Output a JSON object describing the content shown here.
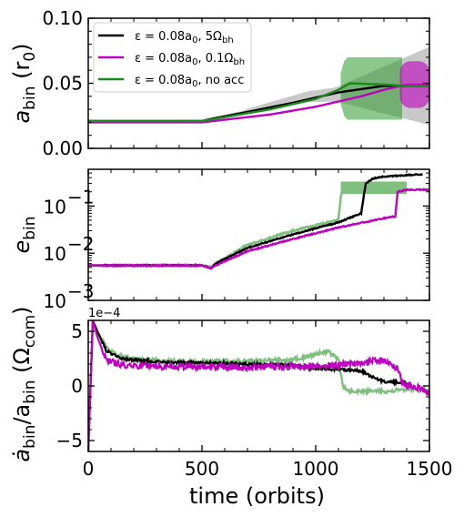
{
  "chart_data": [
    {
      "type": "line",
      "panel": "top",
      "ylabel_main": "a",
      "ylabel_sub": "bin",
      "ylabel_unit": "(r",
      "ylabel_unit_sub": "0",
      "ylabel_close": ")",
      "xlim": [
        0,
        1500
      ],
      "ylim": [
        0.0,
        0.1
      ],
      "yticks": [
        0.0,
        0.05,
        0.1
      ],
      "ytick_labels": [
        "0.00",
        "0.05",
        "0.10"
      ],
      "legend_placement": "upper-left",
      "series": [
        {
          "name": "ε = 0.08a₀, 5Ω_bh",
          "legend_main": "ε = 0.08a",
          "legend_sub1": "0",
          "legend_tail": ", 5Ω",
          "legend_sub2": "bh",
          "color": "#000000",
          "x": [
            0,
            500,
            550,
            700,
            900,
            1100,
            1300,
            1400,
            1500
          ],
          "y": [
            0.021,
            0.021,
            0.023,
            0.028,
            0.035,
            0.043,
            0.048,
            0.048,
            0.048
          ]
        },
        {
          "name": "ε = 0.08a₀, 0.1Ω_bh",
          "legend_main": "ε = 0.08a",
          "legend_sub1": "0",
          "legend_tail": ", 0.1Ω",
          "legend_sub2": "bh",
          "color": "#c000c0",
          "x": [
            0,
            500,
            600,
            800,
            1000,
            1200,
            1300,
            1400,
            1500
          ],
          "y": [
            0.02,
            0.02,
            0.022,
            0.026,
            0.032,
            0.04,
            0.045,
            0.049,
            0.049
          ]
        },
        {
          "name": "ε = 0.08a₀, no acc",
          "legend_main": "ε = 0.08a",
          "legend_sub1": "0",
          "legend_tail": ", no acc",
          "legend_sub2": "",
          "color": "#1a8a1a",
          "x": [
            0,
            500,
            600,
            800,
            1000,
            1100,
            1150,
            1300,
            1400,
            1500
          ],
          "y": [
            0.021,
            0.021,
            0.024,
            0.03,
            0.038,
            0.045,
            0.05,
            0.049,
            0.048,
            0.048
          ]
        }
      ]
    },
    {
      "type": "line",
      "panel": "middle",
      "ylabel_main": "e",
      "ylabel_sub": "bin",
      "yscale": "log",
      "xlim": [
        0,
        1500
      ],
      "ylim": [
        0.001,
        0.6
      ],
      "yticks_exp": [
        -3,
        -2,
        -1
      ],
      "ytick_base": "10",
      "series": [
        {
          "name": "no acc",
          "color": "#7fc07f",
          "x": [
            0,
            500,
            540,
            560,
            700,
            900,
            1100,
            1110,
            1120,
            1400
          ],
          "y": [
            0.0055,
            0.0055,
            0.005,
            0.006,
            0.015,
            0.03,
            0.05,
            0.15,
            0.27,
            0.25
          ]
        },
        {
          "name": "5Ω_bh",
          "color": "#000000",
          "x": [
            0,
            500,
            540,
            560,
            700,
            900,
            1100,
            1200,
            1210,
            1220,
            1250,
            1300,
            1400,
            1470
          ],
          "y": [
            0.0055,
            0.0055,
            0.0048,
            0.006,
            0.013,
            0.025,
            0.045,
            0.07,
            0.15,
            0.3,
            0.38,
            0.42,
            0.45,
            0.47
          ]
        },
        {
          "name": "0.1Ω_bh",
          "color": "#c000c0",
          "x": [
            0,
            500,
            540,
            560,
            700,
            900,
            1100,
            1300,
            1350,
            1360,
            1400,
            1500
          ],
          "y": [
            0.0055,
            0.0055,
            0.0048,
            0.0055,
            0.011,
            0.02,
            0.035,
            0.055,
            0.06,
            0.2,
            0.22,
            0.22
          ]
        }
      ]
    },
    {
      "type": "line",
      "panel": "bottom",
      "ylabel_main": "ȧ",
      "ylabel_div": "/a",
      "ylabel_sub": "bin",
      "ylabel_unit": "(Ω",
      "ylabel_unit_sub": "com",
      "ylabel_close": ")",
      "xlabel": "time (orbits)",
      "offset_text": "1e−4",
      "xlim": [
        0,
        1500
      ],
      "ylim": [
        -6,
        6
      ],
      "yticks": [
        -5,
        0,
        5
      ],
      "ytick_labels": [
        "−5",
        "0",
        "5"
      ],
      "xticks": [
        0,
        500,
        1000,
        1500
      ],
      "xtick_labels": [
        "0",
        "500",
        "1000",
        "1500"
      ],
      "series": [
        {
          "name": "no acc",
          "color": "#7fc07f",
          "x": [
            0,
            20,
            40,
            80,
            150,
            300,
            500,
            700,
            900,
            1000,
            1050,
            1100,
            1120,
            1140,
            1300,
            1400,
            1500
          ],
          "y": [
            -6,
            6,
            5,
            3.5,
            2.6,
            2.3,
            2.2,
            2.3,
            2.4,
            2.9,
            3.2,
            2.5,
            0.0,
            -0.5,
            -0.5,
            -0.3,
            -0.4
          ]
        },
        {
          "name": "5Ω_bh",
          "color": "#000000",
          "x": [
            0,
            20,
            40,
            80,
            150,
            300,
            500,
            700,
            900,
            1000,
            1100,
            1200,
            1250,
            1300,
            1400
          ],
          "y": [
            -6,
            6,
            5,
            3.2,
            2.5,
            2.2,
            2.1,
            2.0,
            1.9,
            1.6,
            1.5,
            1.4,
            0.8,
            0.4,
            0.3
          ]
        },
        {
          "name": "0.1Ω_bh",
          "color": "#c000c0",
          "x": [
            0,
            20,
            40,
            80,
            150,
            300,
            500,
            700,
            900,
            1100,
            1200,
            1300,
            1360,
            1380,
            1450,
            1500
          ],
          "y": [
            -6,
            6,
            4.5,
            2.3,
            1.9,
            1.8,
            1.8,
            1.7,
            1.8,
            1.9,
            2.1,
            2.4,
            1.6,
            0.3,
            -0.2,
            -0.6
          ]
        }
      ]
    }
  ]
}
